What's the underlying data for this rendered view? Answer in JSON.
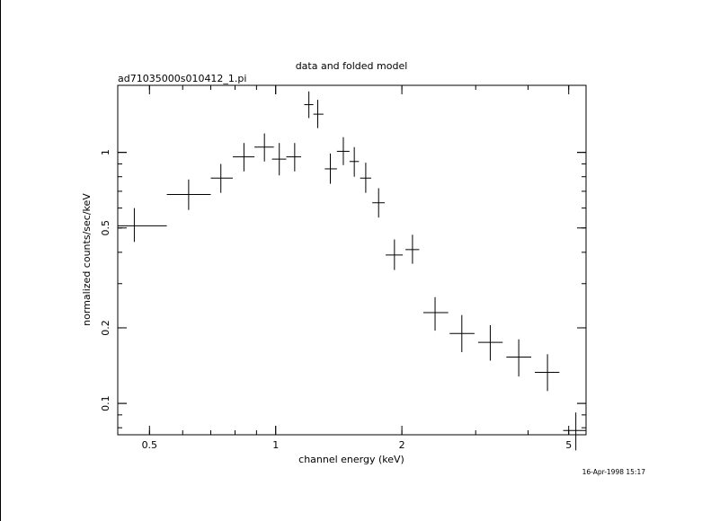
{
  "chart_data": {
    "type": "scatter",
    "title": "data and folded model",
    "subtitle": "ad71035000s010412_1.pi",
    "xlabel": "channel energy (keV)",
    "ylabel": "normalized counts/sec/keV",
    "timestamp": "16-Apr-1998 15:17",
    "x_scale": "log",
    "y_scale": "log",
    "xlim": [
      0.42,
      5.5
    ],
    "ylim": [
      0.075,
      1.85
    ],
    "x_ticks": [
      {
        "value": 0.5,
        "label": "0.5"
      },
      {
        "value": 1,
        "label": "1"
      },
      {
        "value": 2,
        "label": "2"
      },
      {
        "value": 5,
        "label": "5"
      }
    ],
    "y_ticks": [
      {
        "value": 0.1,
        "label": "0.1"
      },
      {
        "value": 0.2,
        "label": "0.2"
      },
      {
        "value": 0.5,
        "label": "0.5"
      },
      {
        "value": 1,
        "label": "1"
      }
    ],
    "grid": false,
    "series": [
      {
        "points": [
          {
            "x": 0.46,
            "xlo": 0.42,
            "xhi": 0.55,
            "y": 0.51,
            "ylo": 0.44,
            "yhi": 0.6
          },
          {
            "x": 0.62,
            "xlo": 0.55,
            "xhi": 0.7,
            "y": 0.68,
            "ylo": 0.59,
            "yhi": 0.78
          },
          {
            "x": 0.74,
            "xlo": 0.7,
            "xhi": 0.79,
            "y": 0.79,
            "ylo": 0.69,
            "yhi": 0.9
          },
          {
            "x": 0.84,
            "xlo": 0.79,
            "xhi": 0.89,
            "y": 0.96,
            "ylo": 0.84,
            "yhi": 1.09
          },
          {
            "x": 0.94,
            "xlo": 0.89,
            "xhi": 0.99,
            "y": 1.05,
            "ylo": 0.92,
            "yhi": 1.19
          },
          {
            "x": 1.02,
            "xlo": 0.98,
            "xhi": 1.06,
            "y": 0.94,
            "ylo": 0.81,
            "yhi": 1.09
          },
          {
            "x": 1.11,
            "xlo": 1.06,
            "xhi": 1.15,
            "y": 0.96,
            "ylo": 0.84,
            "yhi": 1.09
          },
          {
            "x": 1.2,
            "xlo": 1.17,
            "xhi": 1.23,
            "y": 1.55,
            "ylo": 1.37,
            "yhi": 1.75
          },
          {
            "x": 1.26,
            "xlo": 1.23,
            "xhi": 1.3,
            "y": 1.42,
            "ylo": 1.25,
            "yhi": 1.62
          },
          {
            "x": 1.35,
            "xlo": 1.31,
            "xhi": 1.4,
            "y": 0.86,
            "ylo": 0.75,
            "yhi": 0.99
          },
          {
            "x": 1.45,
            "xlo": 1.4,
            "xhi": 1.5,
            "y": 1.01,
            "ylo": 0.89,
            "yhi": 1.15
          },
          {
            "x": 1.54,
            "xlo": 1.5,
            "xhi": 1.58,
            "y": 0.92,
            "ylo": 0.8,
            "yhi": 1.05
          },
          {
            "x": 1.64,
            "xlo": 1.59,
            "xhi": 1.69,
            "y": 0.79,
            "ylo": 0.69,
            "yhi": 0.91
          },
          {
            "x": 1.76,
            "xlo": 1.7,
            "xhi": 1.82,
            "y": 0.63,
            "ylo": 0.55,
            "yhi": 0.72
          },
          {
            "x": 1.92,
            "xlo": 1.83,
            "xhi": 2.01,
            "y": 0.39,
            "ylo": 0.34,
            "yhi": 0.45
          },
          {
            "x": 2.12,
            "xlo": 2.04,
            "xhi": 2.2,
            "y": 0.41,
            "ylo": 0.36,
            "yhi": 0.47
          },
          {
            "x": 2.4,
            "xlo": 2.25,
            "xhi": 2.58,
            "y": 0.23,
            "ylo": 0.195,
            "yhi": 0.265
          },
          {
            "x": 2.78,
            "xlo": 2.6,
            "xhi": 2.98,
            "y": 0.19,
            "ylo": 0.16,
            "yhi": 0.225
          },
          {
            "x": 3.25,
            "xlo": 3.04,
            "xhi": 3.48,
            "y": 0.175,
            "ylo": 0.148,
            "yhi": 0.205
          },
          {
            "x": 3.8,
            "xlo": 3.55,
            "xhi": 4.07,
            "y": 0.153,
            "ylo": 0.128,
            "yhi": 0.18
          },
          {
            "x": 4.45,
            "xlo": 4.15,
            "xhi": 4.75,
            "y": 0.133,
            "ylo": 0.112,
            "yhi": 0.157
          },
          {
            "x": 5.2,
            "xlo": 4.85,
            "xhi": 5.5,
            "y": 0.078,
            "ylo": 0.065,
            "yhi": 0.092
          }
        ]
      }
    ]
  }
}
